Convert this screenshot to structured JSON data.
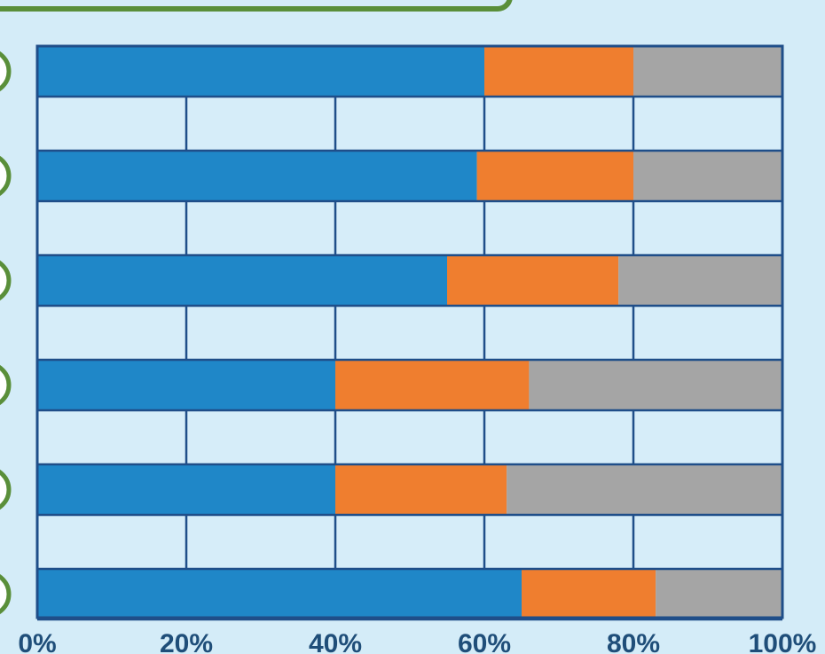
{
  "chart_data": {
    "type": "stacked-barh",
    "categories": [
      null,
      null,
      null,
      null,
      null,
      null
    ],
    "series": [
      {
        "color": "#1f87c8",
        "values": [
          60,
          59,
          55,
          40,
          40,
          65
        ]
      },
      {
        "color": "#ef7e2f",
        "values": [
          20,
          21,
          23,
          26,
          23,
          18
        ]
      },
      {
        "color": "#a5a5a5",
        "values": [
          20,
          20,
          22,
          34,
          37,
          17
        ]
      }
    ],
    "xlim": [
      0,
      100
    ],
    "xticks": [
      {
        "value": 0,
        "label": "0%"
      },
      {
        "value": 20,
        "label": "20%"
      },
      {
        "value": 40,
        "label": "40%"
      },
      {
        "value": 60,
        "label": "60%"
      },
      {
        "value": 80,
        "label": "80%"
      },
      {
        "value": 100,
        "label": "100%"
      }
    ],
    "grid": true
  }
}
